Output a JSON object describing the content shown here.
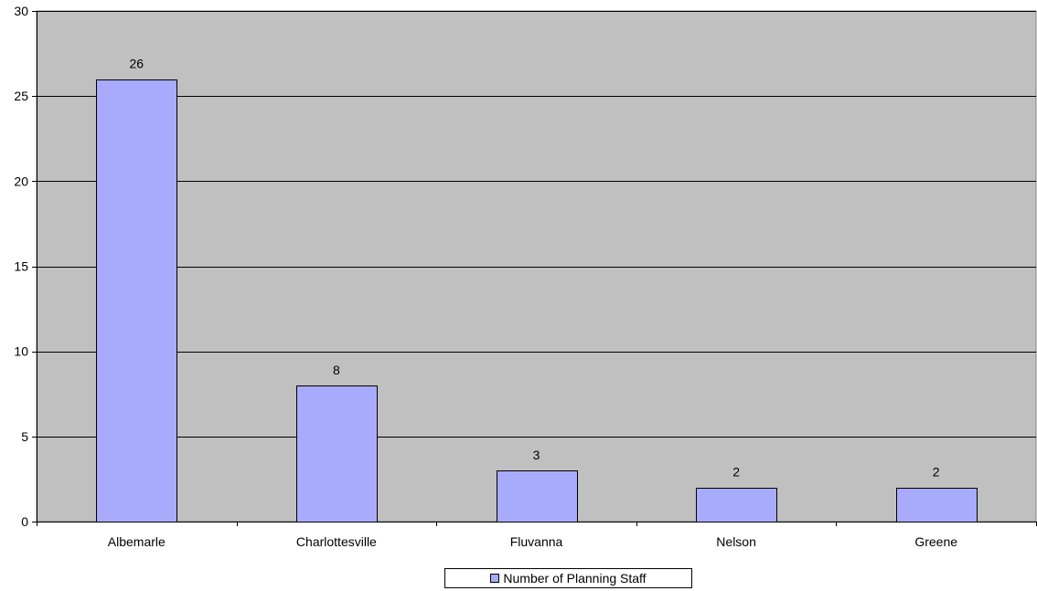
{
  "chart_data": {
    "type": "bar",
    "categories": [
      "Albemarle",
      "Charlottesville",
      "Fluvanna",
      "Nelson",
      "Greene"
    ],
    "series": [
      {
        "name": "Number of Planning Staff",
        "values": [
          26,
          8,
          3,
          2,
          2
        ]
      }
    ],
    "data_labels": [
      "26",
      "8",
      "3",
      "2",
      "2"
    ],
    "ylim": [
      0,
      30
    ],
    "yticks": [
      0,
      5,
      10,
      15,
      20,
      25,
      30
    ],
    "ytick_labels": [
      "0",
      "5",
      "10",
      "15",
      "20",
      "25",
      "30"
    ],
    "grid": true,
    "legend_position": "bottom",
    "colors": {
      "plot_background": "#c0c0c0",
      "bar_fill": "#a8abfc",
      "bar_stroke": "#000000",
      "grid": "#000000"
    }
  }
}
